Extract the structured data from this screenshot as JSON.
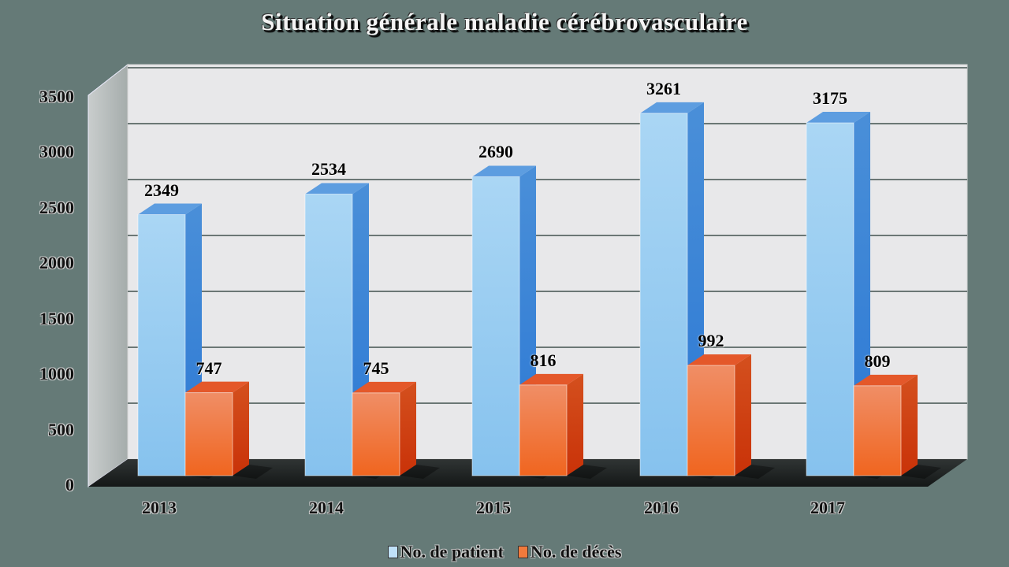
{
  "chart_data": {
    "type": "bar",
    "title": "Situation générale maladie cérébrovasculaire",
    "xlabel": "",
    "ylabel": "",
    "categories": [
      "2013",
      "2014",
      "2015",
      "2016",
      "2017"
    ],
    "series": [
      {
        "name": "No. de patient",
        "values": [
          2349,
          2534,
          2690,
          3261,
          3175
        ],
        "color": "#9fd0f2",
        "side_color": "#3f86d6",
        "top_color": "#5b9be0"
      },
      {
        "name": "No. de décès",
        "values": [
          747,
          745,
          816,
          992,
          809
        ],
        "color": "#f07a3c",
        "side_color": "#cc3a10",
        "top_color": "#e45a2a"
      }
    ],
    "yticks": [
      "0",
      "500",
      "1000",
      "1500",
      "2000",
      "2500",
      "3000",
      "3500"
    ],
    "ylim": [
      0,
      3500
    ],
    "grid": true,
    "legend_position": "bottom",
    "style": "3d-clustered-column"
  },
  "title": "Situation générale maladie cérébrovasculaire",
  "yaxis": {
    "ticks": [
      "3500",
      "3000",
      "2500",
      "2000",
      "1500",
      "1000",
      "500",
      "0"
    ]
  },
  "xaxis": {
    "ticks": [
      "2013",
      "2014",
      "2015",
      "2016",
      "2017"
    ]
  },
  "labels": {
    "patients": [
      "2349",
      "2534",
      "2690",
      "3261",
      "3175"
    ],
    "deaths": [
      "747",
      "745",
      "816",
      "992",
      "809"
    ]
  },
  "legend": [
    {
      "label": "No. de patient",
      "color": "#bfe1f8"
    },
    {
      "label": "No. de décès",
      "color": "#f07a3c"
    }
  ],
  "colors": {
    "background": "#657a77",
    "wall": "#e8e8ea",
    "side_wall": "#b4b9b9",
    "grid": "#6b7775"
  }
}
